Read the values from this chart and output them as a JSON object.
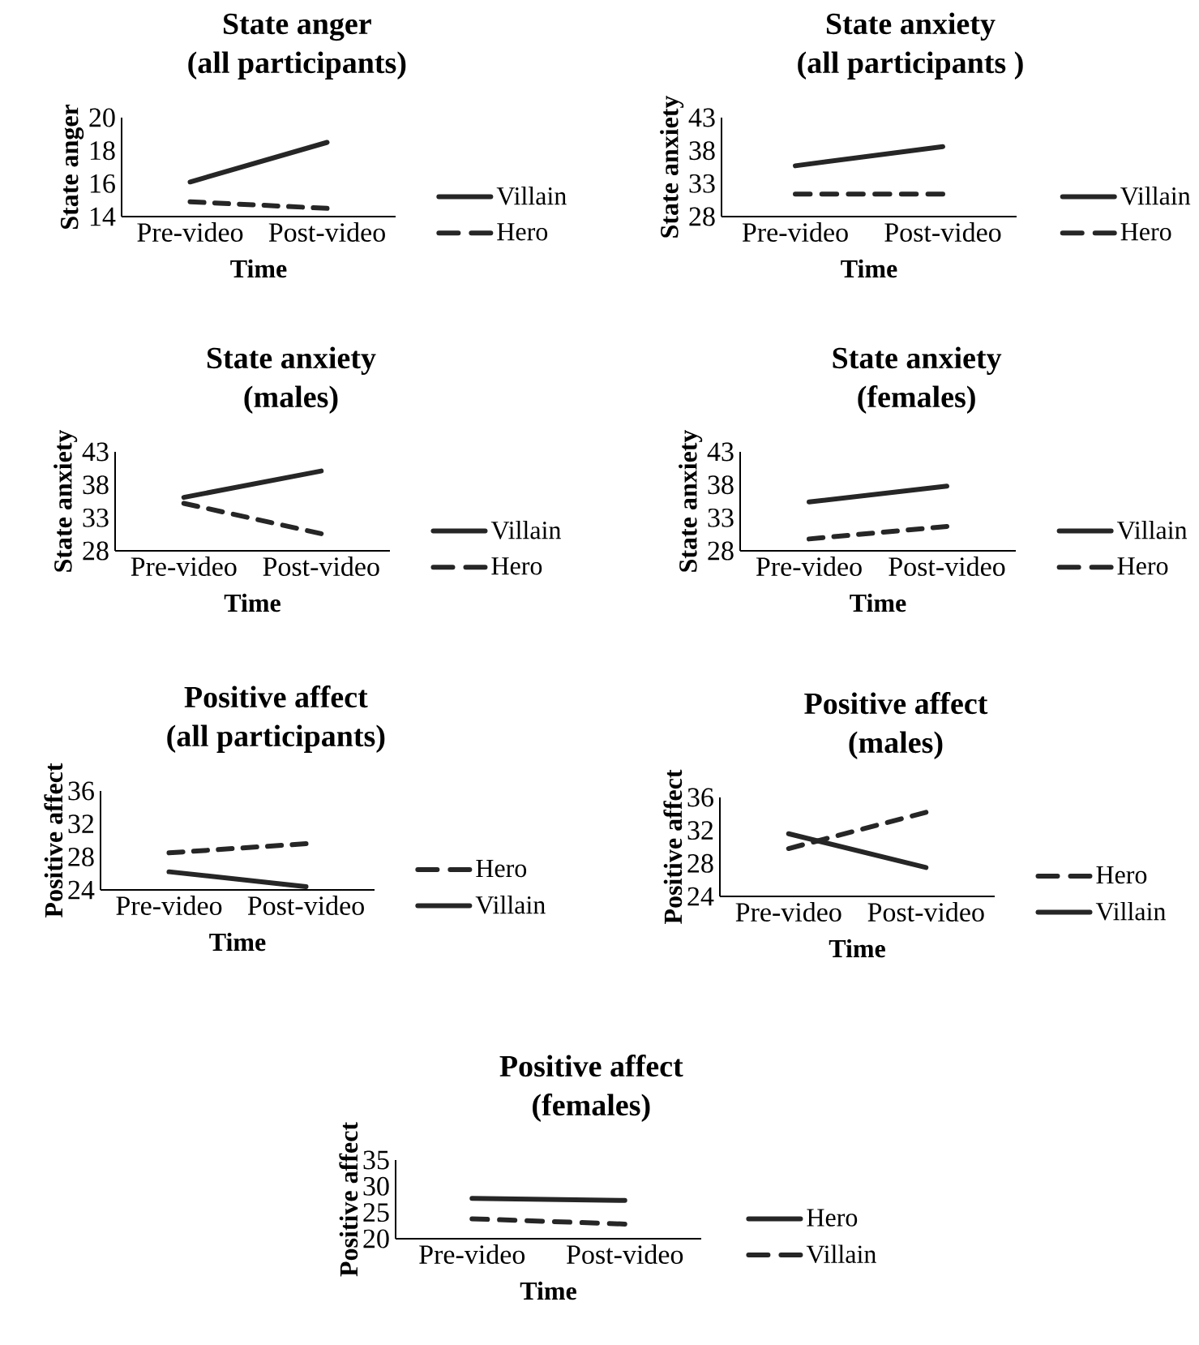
{
  "chart_data": [
    {
      "type": "line",
      "title": "State anger",
      "subtitle": "(all participants)",
      "xlabel": "Time",
      "ylabel": "State anger",
      "categories": [
        "Pre-video",
        "Post-video"
      ],
      "ylim": [
        14,
        20
      ],
      "yticks": [
        14,
        16,
        18,
        20
      ],
      "legend": "right",
      "series": [
        {
          "name": "Villain",
          "color": "#262626",
          "line_style": "solid",
          "values": [
            16.1,
            18.5
          ]
        },
        {
          "name": "Hero",
          "color": "#262626",
          "line_style": "dashed",
          "values": [
            14.9,
            14.5
          ]
        }
      ]
    },
    {
      "type": "line",
      "title": "State anxiety",
      "subtitle": "(all participants )",
      "xlabel": "Time",
      "ylabel": "State anxiety",
      "categories": [
        "Pre-video",
        "Post-video"
      ],
      "ylim": [
        28,
        43
      ],
      "yticks": [
        28,
        33,
        38,
        43
      ],
      "legend": "right",
      "series": [
        {
          "name": "Villain",
          "color": "#262626",
          "line_style": "solid",
          "values": [
            35.7,
            38.6
          ]
        },
        {
          "name": "Hero",
          "color": "#262626",
          "line_style": "dashed",
          "values": [
            31.4,
            31.4
          ]
        }
      ]
    },
    {
      "type": "line",
      "title": "State anxiety",
      "subtitle": "(males)",
      "xlabel": "Time",
      "ylabel": "State anxiety",
      "categories": [
        "Pre-video",
        "Post-video"
      ],
      "ylim": [
        28,
        43
      ],
      "yticks": [
        28,
        33,
        38,
        43
      ],
      "legend": "right",
      "series": [
        {
          "name": "Villain",
          "color": "#262626",
          "line_style": "solid",
          "values": [
            36.1,
            40.1
          ]
        },
        {
          "name": "Hero",
          "color": "#262626",
          "line_style": "dashed",
          "values": [
            35.2,
            30.6
          ]
        }
      ]
    },
    {
      "type": "line",
      "title": "State anxiety",
      "subtitle": "(females)",
      "xlabel": "Time",
      "ylabel": "State anxiety",
      "categories": [
        "Pre-video",
        "Post-video"
      ],
      "ylim": [
        28,
        43
      ],
      "yticks": [
        28,
        33,
        38,
        43
      ],
      "legend": "right",
      "series": [
        {
          "name": "Villain",
          "color": "#262626",
          "line_style": "solid",
          "values": [
            35.4,
            37.8
          ]
        },
        {
          "name": "Hero",
          "color": "#262626",
          "line_style": "dashed",
          "values": [
            29.8,
            31.7
          ]
        }
      ]
    },
    {
      "type": "line",
      "title": "Positive affect",
      "subtitle": "(all participants)",
      "xlabel": "Time",
      "ylabel": "Positive affect",
      "categories": [
        "Pre-video",
        "Post-video"
      ],
      "ylim": [
        24,
        36
      ],
      "yticks": [
        24,
        28,
        32,
        36
      ],
      "legend": "right",
      "series": [
        {
          "name": "Hero",
          "color": "#262626",
          "line_style": "dashed",
          "values": [
            28.5,
            29.6
          ]
        },
        {
          "name": "Villain",
          "color": "#262626",
          "line_style": "solid",
          "values": [
            26.2,
            24.4
          ]
        }
      ]
    },
    {
      "type": "line",
      "title": "Positive affect",
      "subtitle": "(males)",
      "xlabel": "Time",
      "ylabel": "Positive affect",
      "categories": [
        "Pre-video",
        "Post-video"
      ],
      "ylim": [
        24,
        36
      ],
      "yticks": [
        24,
        28,
        32,
        36
      ],
      "legend": "right",
      "series": [
        {
          "name": "Hero",
          "color": "#262626",
          "line_style": "dashed",
          "values": [
            29.8,
            34.2
          ]
        },
        {
          "name": "Villain",
          "color": "#262626",
          "line_style": "solid",
          "values": [
            31.6,
            27.5
          ]
        }
      ]
    },
    {
      "type": "line",
      "title": "Positive affect",
      "subtitle": "(females)",
      "xlabel": "Time",
      "ylabel": "Positive affect",
      "categories": [
        "Pre-video",
        "Post-video"
      ],
      "ylim": [
        20,
        35
      ],
      "yticks": [
        20,
        25,
        30,
        35
      ],
      "legend": "right",
      "series": [
        {
          "name": "Hero",
          "color": "#262626",
          "line_style": "solid",
          "values": [
            27.7,
            27.3
          ]
        },
        {
          "name": "Villain",
          "color": "#262626",
          "line_style": "dashed",
          "values": [
            23.8,
            22.8
          ]
        }
      ]
    }
  ]
}
